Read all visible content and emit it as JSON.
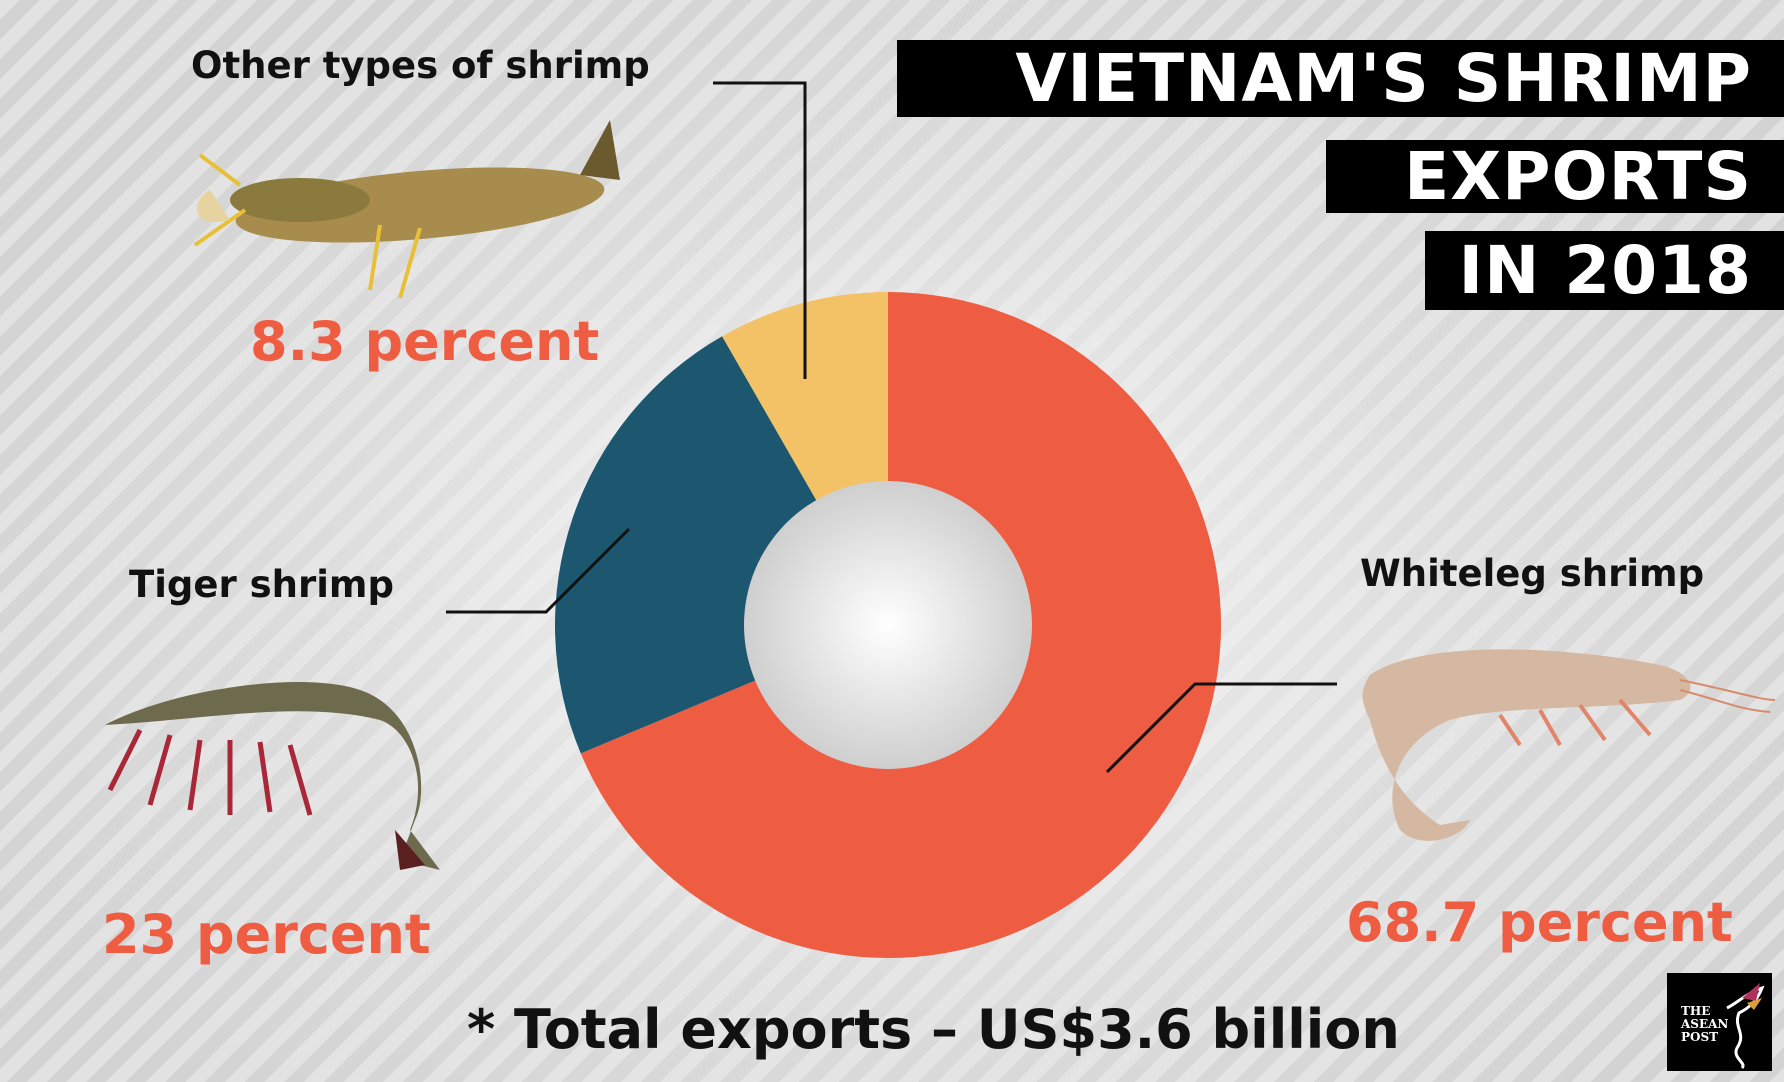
{
  "title": {
    "line1": "VIETNAM'S SHRIMP",
    "line2": "EXPORTS",
    "line3": "IN 2018"
  },
  "labels": {
    "other": "Other types of shrimp",
    "other_pct": "8.3 percent",
    "tiger": "Tiger shrimp",
    "tiger_pct": "23 percent",
    "whiteleg": "Whiteleg shrimp",
    "whiteleg_pct": "68.7 percent"
  },
  "footnote": "* Total exports –  US$3.6 billion",
  "logo": "THE ASEAN POST",
  "chart_data": {
    "type": "pie",
    "variant": "donut",
    "categories": [
      "Whiteleg shrimp",
      "Tiger shrimp",
      "Other types of shrimp"
    ],
    "values": [
      68.7,
      23,
      8.3
    ],
    "unit": "percent",
    "colors": [
      "#ee5c42",
      "#1c566f",
      "#f4c266"
    ],
    "title": "VIETNAM'S SHRIMP EXPORTS IN 2018"
  }
}
